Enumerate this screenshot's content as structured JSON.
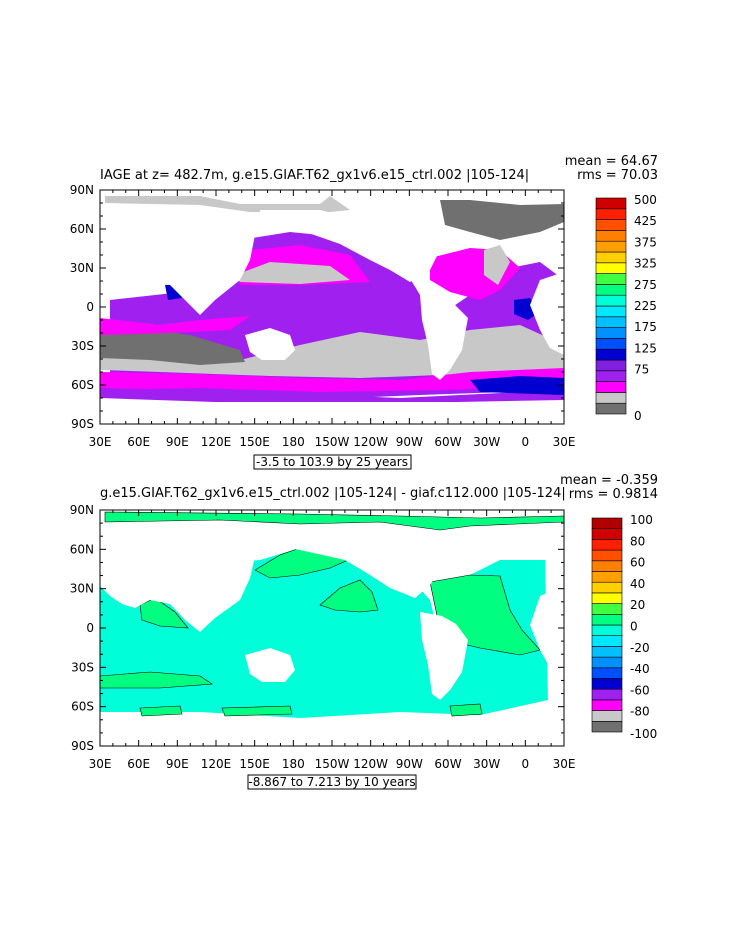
{
  "panels": [
    {
      "title": "IAGE at z= 482.7m, g.e15.GIAF.T62_gx1v6.e15_ctrl.002 |105-124|",
      "stats": [
        "mean = 64.67",
        "rms = 70.03"
      ],
      "range_label": "-3.5 to 103.9 by 25 years",
      "colorbar_labels": [
        "500",
        "425",
        "375",
        "325",
        "275",
        "225",
        "175",
        "125",
        "75",
        "0"
      ],
      "colors": [
        "#707070",
        "#c8c8c8",
        "#ff00ff",
        "#a020f0",
        "#8020e0",
        "#0000d0",
        "#0050ff",
        "#0090ff",
        "#00c0ff",
        "#00e8ff",
        "#00ffd8",
        "#00ff80",
        "#40ff40",
        "#ffff00",
        "#ffd000",
        "#ffa000",
        "#ff8000",
        "#ff5000",
        "#ff2000",
        "#d00000"
      ],
      "shown_levels": [
        "0",
        "25",
        "50",
        "75"
      ]
    },
    {
      "title": "g.e15.GIAF.T62_gx1v6.e15_ctrl.002 |105-124| - giaf.c112.000 |105-124|",
      "stats": [
        "mean = -0.359",
        "rms = 0.9814"
      ],
      "range_label": "-8.867 to 7.213 by 10 years",
      "colorbar_labels": [
        "100",
        "80",
        "60",
        "40",
        "20",
        "0",
        "-20",
        "-40",
        "-60",
        "-80",
        "-100"
      ],
      "colors": [
        "#707070",
        "#c8c8c8",
        "#ff00ff",
        "#a020f0",
        "#0000d0",
        "#0050ff",
        "#0090ff",
        "#00c0ff",
        "#00e8ff",
        "#00ffd8",
        "#00ff80",
        "#40ff40",
        "#ffff00",
        "#ffd000",
        "#ffa000",
        "#ff8000",
        "#ff5000",
        "#ff2000",
        "#d00000",
        "#b00000"
      ],
      "shown_levels": [
        "-10",
        "0"
      ]
    }
  ],
  "x_ticks": [
    "30E",
    "60E",
    "90E",
    "120E",
    "150E",
    "180",
    "150W",
    "120W",
    "90W",
    "60W",
    "30W",
    "0",
    "30E"
  ],
  "y_ticks": [
    "90N",
    "60N",
    "30N",
    "0",
    "30S",
    "60S",
    "90S"
  ],
  "chart_data": [
    {
      "type": "heatmap",
      "title": "IAGE at z= 482.7m, g.e15.GIAF.T62_gx1v6.e15_ctrl.002 |105-124|",
      "x_range": [
        "30E",
        "30E"
      ],
      "y_range": [
        "90S",
        "90N"
      ],
      "contour_interval": 25,
      "data_min": -3.5,
      "data_max": 103.9,
      "mean": 64.67,
      "rms": 70.03
    },
    {
      "type": "heatmap",
      "title": "g.e15.GIAF.T62_gx1v6.e15_ctrl.002 |105-124| - giaf.c112.000 |105-124|",
      "x_range": [
        "30E",
        "30E"
      ],
      "y_range": [
        "90S",
        "90N"
      ],
      "contour_interval": 10,
      "data_min": -8.867,
      "data_max": 7.213,
      "mean": -0.359,
      "rms": 0.9814
    }
  ]
}
